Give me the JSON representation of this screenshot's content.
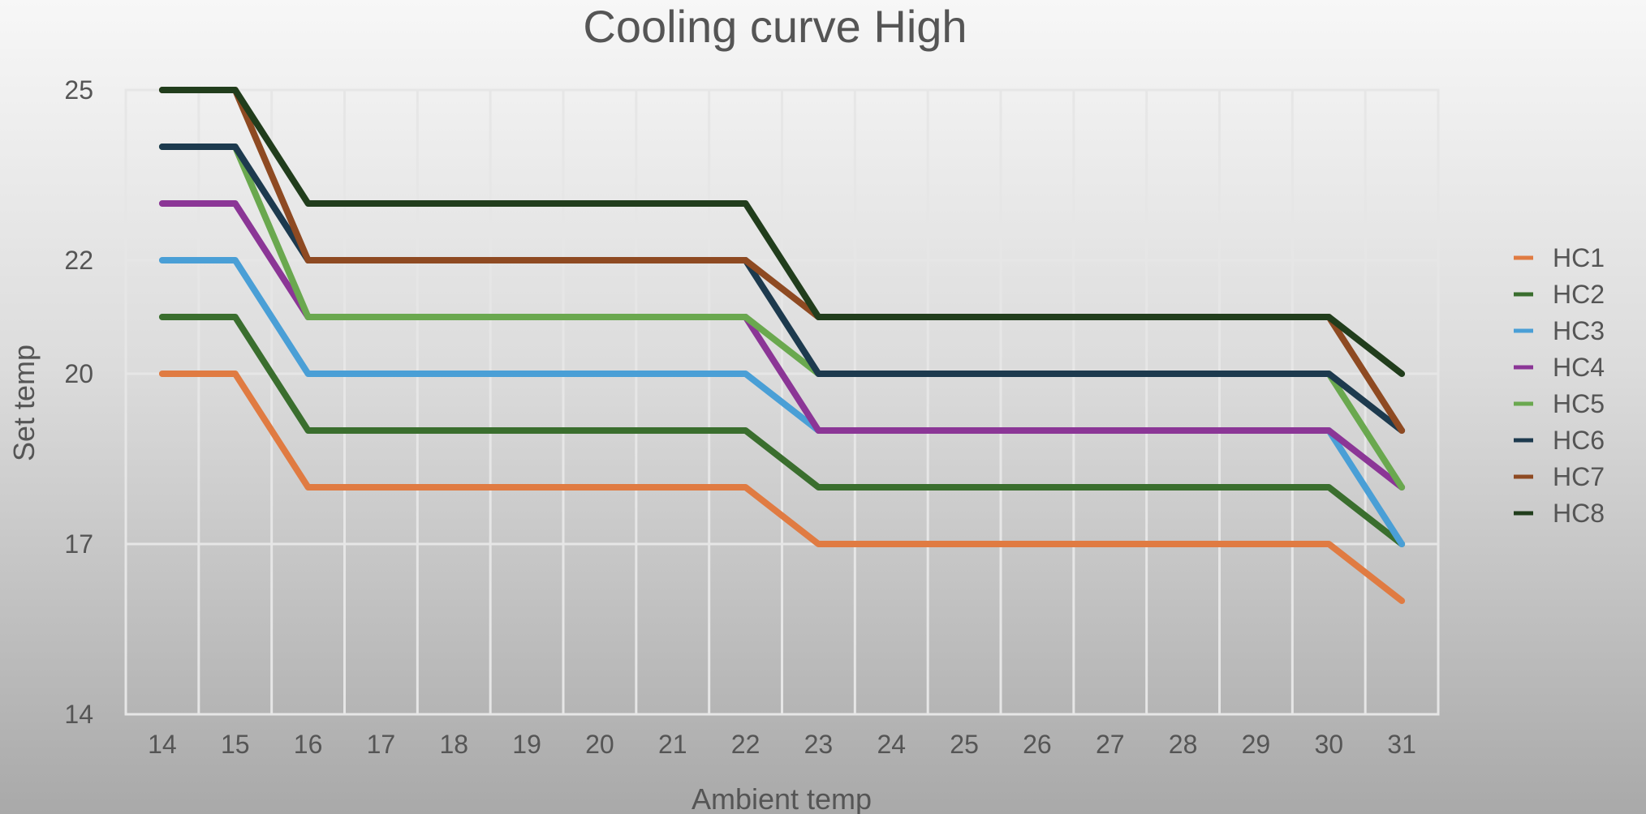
{
  "chart_data": {
    "type": "line",
    "title": "Cooling curve High",
    "xlabel": "Ambient temp",
    "ylabel": "Set temp",
    "x": [
      14,
      15,
      16,
      17,
      18,
      19,
      20,
      21,
      22,
      23,
      24,
      25,
      26,
      27,
      28,
      29,
      30,
      31
    ],
    "ylim": [
      14,
      25
    ],
    "yticks": [
      14,
      17,
      20,
      22,
      25
    ],
    "grid": true,
    "legend_position": "right",
    "series": [
      {
        "name": "HC1",
        "color": "#e07b42",
        "values": [
          20,
          20,
          18,
          18,
          18,
          18,
          18,
          18,
          18,
          17,
          17,
          17,
          17,
          17,
          17,
          17,
          17,
          16
        ]
      },
      {
        "name": "HC2",
        "color": "#3a6e2e",
        "values": [
          21,
          21,
          19,
          19,
          19,
          19,
          19,
          19,
          19,
          18,
          18,
          18,
          18,
          18,
          18,
          18,
          18,
          17
        ]
      },
      {
        "name": "HC3",
        "color": "#4a9fd6",
        "values": [
          22,
          22,
          20,
          20,
          20,
          20,
          20,
          20,
          20,
          19,
          19,
          19,
          19,
          19,
          19,
          19,
          19,
          17
        ]
      },
      {
        "name": "HC4",
        "color": "#8b3696",
        "values": [
          23,
          23,
          21,
          21,
          21,
          21,
          21,
          21,
          21,
          19,
          19,
          19,
          19,
          19,
          19,
          19,
          19,
          18
        ]
      },
      {
        "name": "HC5",
        "color": "#6aa84f",
        "values": [
          24,
          24,
          21,
          21,
          21,
          21,
          21,
          21,
          21,
          20,
          20,
          20,
          20,
          20,
          20,
          20,
          20,
          18
        ]
      },
      {
        "name": "HC6",
        "color": "#1d3a4e",
        "values": [
          24,
          24,
          22,
          22,
          22,
          22,
          22,
          22,
          22,
          20,
          20,
          20,
          20,
          20,
          20,
          20,
          20,
          19
        ]
      },
      {
        "name": "HC7",
        "color": "#8e4a22",
        "values": [
          25,
          25,
          22,
          22,
          22,
          22,
          22,
          22,
          22,
          21,
          21,
          21,
          21,
          21,
          21,
          21,
          21,
          19
        ]
      },
      {
        "name": "HC8",
        "color": "#213d1c",
        "values": [
          25,
          25,
          23,
          23,
          23,
          23,
          23,
          23,
          23,
          21,
          21,
          21,
          21,
          21,
          21,
          21,
          21,
          20
        ]
      }
    ]
  }
}
